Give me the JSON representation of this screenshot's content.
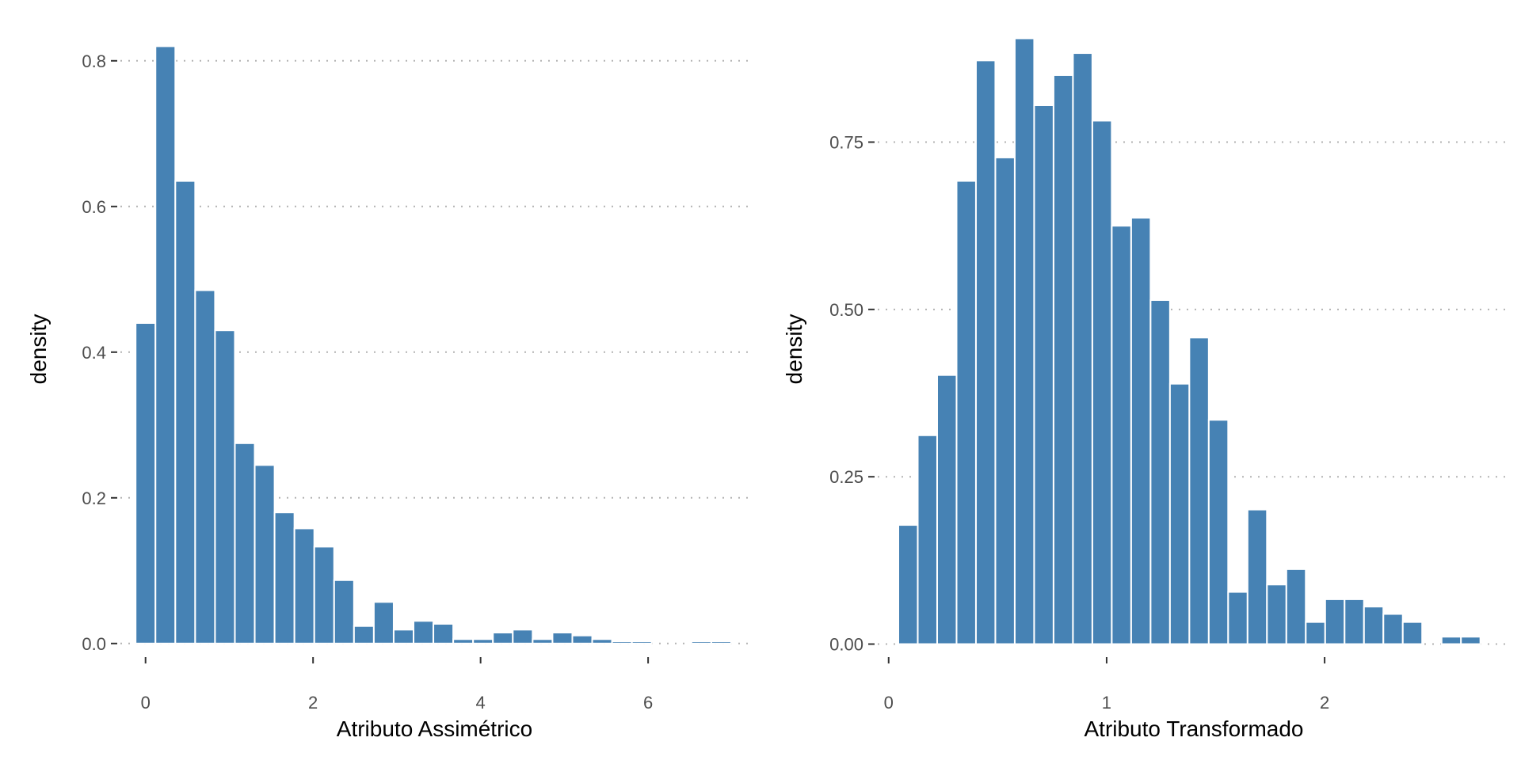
{
  "colors": {
    "bar_fill": "#4682B4",
    "bar_outline": "#FFFFFF",
    "grid": "#B3B3B3",
    "tick_text": "#4D4D4D"
  },
  "chart_data": [
    {
      "type": "bar",
      "histogram": true,
      "xlabel": "Atributo Assimétrico",
      "ylabel": "density",
      "bin_width": 0.237,
      "bin_centers": [
        0.0,
        0.237,
        0.474,
        0.711,
        0.948,
        1.185,
        1.422,
        1.659,
        1.896,
        2.133,
        2.37,
        2.607,
        2.844,
        3.081,
        3.318,
        3.555,
        3.792,
        4.029,
        4.266,
        4.503,
        4.74,
        4.977,
        5.214,
        5.451,
        5.688,
        5.925,
        6.162,
        6.399,
        6.636,
        6.873
      ],
      "values": [
        0.44,
        0.82,
        0.635,
        0.485,
        0.43,
        0.275,
        0.245,
        0.18,
        0.158,
        0.133,
        0.087,
        0.024,
        0.057,
        0.019,
        0.031,
        0.027,
        0.006,
        0.006,
        0.015,
        0.019,
        0.006,
        0.015,
        0.011,
        0.006,
        0.003,
        0.003,
        0.0,
        0.0,
        0.003,
        0.003
      ],
      "xlim": [
        -0.3,
        7.2
      ],
      "ylim": [
        -0.01,
        0.84
      ],
      "x_ticks": [
        0,
        2,
        4,
        6
      ],
      "x_tick_labels": [
        "0",
        "2",
        "4",
        "6"
      ],
      "y_ticks": [
        0.0,
        0.2,
        0.4,
        0.6,
        0.8
      ],
      "y_tick_labels": [
        "0.0",
        "0.2",
        "0.4",
        "0.6",
        "0.8"
      ],
      "grid": "horizontal dotted"
    },
    {
      "type": "bar",
      "histogram": true,
      "xlabel": "Atributo Transformado",
      "ylabel": "density",
      "bin_width": 0.0889,
      "bin_centers": [
        0.089,
        0.178,
        0.267,
        0.356,
        0.445,
        0.534,
        0.623,
        0.712,
        0.801,
        0.89,
        0.979,
        1.068,
        1.157,
        1.246,
        1.335,
        1.424,
        1.513,
        1.602,
        1.691,
        1.78,
        1.869,
        1.958,
        2.047,
        2.136,
        2.225,
        2.314,
        2.403,
        2.492,
        2.581,
        2.67
      ],
      "values": [
        0.178,
        0.312,
        0.402,
        0.692,
        0.872,
        0.727,
        0.905,
        0.805,
        0.85,
        0.883,
        0.782,
        0.625,
        0.637,
        0.514,
        0.389,
        0.458,
        0.335,
        0.078,
        0.201,
        0.089,
        0.112,
        0.033,
        0.067,
        0.067,
        0.056,
        0.045,
        0.033,
        0.0,
        0.011,
        0.011
      ],
      "xlim": [
        -0.05,
        2.85
      ],
      "ylim": [
        -0.01,
        0.915
      ],
      "x_ticks": [
        0,
        1,
        2
      ],
      "x_tick_labels": [
        "0",
        "1",
        "2"
      ],
      "y_ticks": [
        0.0,
        0.25,
        0.5,
        0.75
      ],
      "y_tick_labels": [
        "0.00",
        "0.25",
        "0.50",
        "0.75"
      ],
      "grid": "horizontal dotted"
    }
  ]
}
